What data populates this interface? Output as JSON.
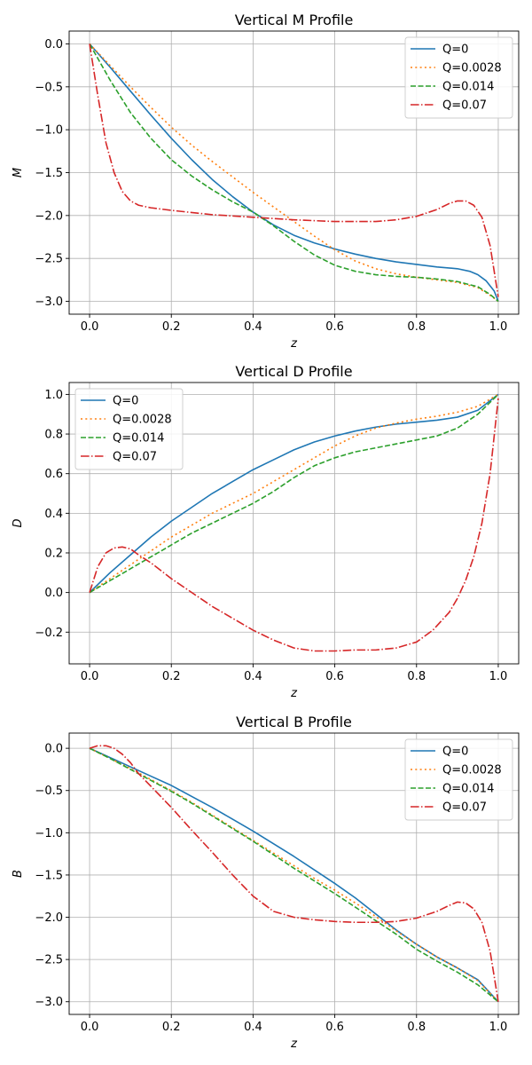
{
  "chart_data": [
    {
      "type": "line",
      "title": "Vertical M Profile",
      "xlabel": "z",
      "ylabel": "M",
      "xlim": [
        -0.05,
        1.05
      ],
      "ylim": [
        -3.15,
        0.15
      ],
      "xticks": [
        0.0,
        0.2,
        0.4,
        0.6,
        0.8,
        1.0
      ],
      "xtick_labels": [
        "0.0",
        "0.2",
        "0.4",
        "0.6",
        "0.8",
        "1.0"
      ],
      "yticks": [
        0.0,
        -0.5,
        -1.0,
        -1.5,
        -2.0,
        -2.5,
        -3.0
      ],
      "ytick_labels": [
        "0.0",
        "−0.5",
        "−1.0",
        "−1.5",
        "−2.0",
        "−2.5",
        "−3.0"
      ],
      "grid": true,
      "legend_position": "upper right",
      "series": [
        {
          "name": "Q=0",
          "color": "#1f77b4",
          "dash": "solid",
          "x": [
            0,
            0.05,
            0.1,
            0.15,
            0.2,
            0.25,
            0.3,
            0.35,
            0.4,
            0.45,
            0.5,
            0.55,
            0.6,
            0.65,
            0.7,
            0.75,
            0.8,
            0.85,
            0.9,
            0.93,
            0.95,
            0.97,
            0.99,
            1.0
          ],
          "y": [
            0,
            -0.27,
            -0.55,
            -0.83,
            -1.1,
            -1.35,
            -1.58,
            -1.78,
            -1.96,
            -2.11,
            -2.23,
            -2.32,
            -2.39,
            -2.45,
            -2.5,
            -2.54,
            -2.57,
            -2.6,
            -2.62,
            -2.65,
            -2.69,
            -2.76,
            -2.88,
            -3.0
          ]
        },
        {
          "name": "Q=0.0028",
          "color": "#ff7f0e",
          "dash": "dotted",
          "x": [
            0,
            0.05,
            0.1,
            0.15,
            0.2,
            0.25,
            0.3,
            0.35,
            0.4,
            0.45,
            0.5,
            0.55,
            0.6,
            0.65,
            0.7,
            0.75,
            0.8,
            0.85,
            0.9,
            0.95,
            0.98,
            1.0
          ],
          "y": [
            0,
            -0.25,
            -0.5,
            -0.74,
            -0.97,
            -1.18,
            -1.37,
            -1.55,
            -1.73,
            -1.9,
            -2.07,
            -2.24,
            -2.4,
            -2.53,
            -2.62,
            -2.68,
            -2.72,
            -2.75,
            -2.78,
            -2.84,
            -2.93,
            -3.0
          ]
        },
        {
          "name": "Q=0.014",
          "color": "#2ca02c",
          "dash": "dashed",
          "x": [
            0,
            0.05,
            0.1,
            0.15,
            0.2,
            0.25,
            0.3,
            0.35,
            0.4,
            0.45,
            0.5,
            0.55,
            0.6,
            0.65,
            0.7,
            0.75,
            0.8,
            0.85,
            0.9,
            0.95,
            0.98,
            1.0
          ],
          "y": [
            0,
            -0.42,
            -0.8,
            -1.1,
            -1.35,
            -1.54,
            -1.7,
            -1.84,
            -1.96,
            -2.12,
            -2.3,
            -2.46,
            -2.58,
            -2.65,
            -2.69,
            -2.71,
            -2.72,
            -2.74,
            -2.77,
            -2.83,
            -2.92,
            -3.0
          ]
        },
        {
          "name": "Q=0.07",
          "color": "#d62728",
          "dash": "dashdot",
          "x": [
            0,
            0.02,
            0.04,
            0.06,
            0.08,
            0.1,
            0.12,
            0.15,
            0.2,
            0.3,
            0.4,
            0.5,
            0.6,
            0.7,
            0.75,
            0.8,
            0.85,
            0.88,
            0.9,
            0.92,
            0.94,
            0.96,
            0.98,
            1.0
          ],
          "y": [
            0,
            -0.6,
            -1.15,
            -1.5,
            -1.72,
            -1.83,
            -1.88,
            -1.91,
            -1.94,
            -1.99,
            -2.02,
            -2.05,
            -2.07,
            -2.07,
            -2.05,
            -2.01,
            -1.93,
            -1.86,
            -1.83,
            -1.83,
            -1.88,
            -2.02,
            -2.35,
            -2.95
          ]
        }
      ]
    },
    {
      "type": "line",
      "title": "Vertical D Profile",
      "xlabel": "z",
      "ylabel": "D",
      "xlim": [
        -0.05,
        1.05
      ],
      "ylim": [
        -0.36,
        1.06
      ],
      "xticks": [
        0.0,
        0.2,
        0.4,
        0.6,
        0.8,
        1.0
      ],
      "xtick_labels": [
        "0.0",
        "0.2",
        "0.4",
        "0.6",
        "0.8",
        "1.0"
      ],
      "yticks": [
        -0.2,
        0.0,
        0.2,
        0.4,
        0.6,
        0.8,
        1.0
      ],
      "ytick_labels": [
        "−0.2",
        "0.0",
        "0.2",
        "0.4",
        "0.6",
        "0.8",
        "1.0"
      ],
      "grid": true,
      "legend_position": "upper left",
      "series": [
        {
          "name": "Q=0",
          "color": "#1f77b4",
          "dash": "solid",
          "x": [
            0,
            0.05,
            0.1,
            0.15,
            0.2,
            0.25,
            0.3,
            0.35,
            0.4,
            0.45,
            0.5,
            0.55,
            0.6,
            0.65,
            0.7,
            0.75,
            0.8,
            0.85,
            0.9,
            0.95,
            1.0
          ],
          "y": [
            0,
            0.1,
            0.19,
            0.28,
            0.36,
            0.43,
            0.5,
            0.56,
            0.62,
            0.67,
            0.72,
            0.76,
            0.79,
            0.815,
            0.835,
            0.85,
            0.86,
            0.87,
            0.885,
            0.92,
            1.0
          ]
        },
        {
          "name": "Q=0.0028",
          "color": "#ff7f0e",
          "dash": "dotted",
          "x": [
            0,
            0.05,
            0.1,
            0.15,
            0.2,
            0.25,
            0.3,
            0.35,
            0.4,
            0.45,
            0.5,
            0.55,
            0.6,
            0.65,
            0.7,
            0.75,
            0.8,
            0.85,
            0.9,
            0.95,
            1.0
          ],
          "y": [
            0,
            0.07,
            0.14,
            0.21,
            0.28,
            0.34,
            0.4,
            0.45,
            0.5,
            0.56,
            0.62,
            0.68,
            0.74,
            0.79,
            0.83,
            0.855,
            0.875,
            0.89,
            0.91,
            0.94,
            1.0
          ]
        },
        {
          "name": "Q=0.014",
          "color": "#2ca02c",
          "dash": "dashed",
          "x": [
            0,
            0.05,
            0.1,
            0.15,
            0.2,
            0.25,
            0.3,
            0.35,
            0.4,
            0.45,
            0.5,
            0.55,
            0.6,
            0.65,
            0.7,
            0.75,
            0.8,
            0.85,
            0.9,
            0.95,
            0.98,
            1.0
          ],
          "y": [
            0,
            0.06,
            0.12,
            0.18,
            0.24,
            0.3,
            0.35,
            0.4,
            0.45,
            0.51,
            0.58,
            0.64,
            0.68,
            0.71,
            0.73,
            0.75,
            0.77,
            0.79,
            0.83,
            0.9,
            0.96,
            1.0
          ]
        },
        {
          "name": "Q=0.07",
          "color": "#d62728",
          "dash": "dashdot",
          "x": [
            0,
            0.02,
            0.04,
            0.06,
            0.08,
            0.1,
            0.12,
            0.15,
            0.2,
            0.25,
            0.3,
            0.35,
            0.4,
            0.45,
            0.5,
            0.55,
            0.6,
            0.65,
            0.7,
            0.75,
            0.8,
            0.84,
            0.88,
            0.9,
            0.92,
            0.94,
            0.96,
            0.98,
            1.0
          ],
          "y": [
            0,
            0.13,
            0.2,
            0.225,
            0.23,
            0.22,
            0.19,
            0.15,
            0.07,
            0.0,
            -0.07,
            -0.13,
            -0.19,
            -0.24,
            -0.28,
            -0.295,
            -0.295,
            -0.29,
            -0.29,
            -0.28,
            -0.25,
            -0.19,
            -0.1,
            -0.03,
            0.06,
            0.18,
            0.35,
            0.6,
            0.98
          ]
        }
      ]
    },
    {
      "type": "line",
      "title": "Vertical B Profile",
      "xlabel": "z",
      "ylabel": "B",
      "xlim": [
        -0.05,
        1.05
      ],
      "ylim": [
        -3.15,
        0.18
      ],
      "xticks": [
        0.0,
        0.2,
        0.4,
        0.6,
        0.8,
        1.0
      ],
      "xtick_labels": [
        "0.0",
        "0.2",
        "0.4",
        "0.6",
        "0.8",
        "1.0"
      ],
      "yticks": [
        0.0,
        -0.5,
        -1.0,
        -1.5,
        -2.0,
        -2.5,
        -3.0
      ],
      "ytick_labels": [
        "0.0",
        "−0.5",
        "−1.0",
        "−1.5",
        "−2.0",
        "−2.5",
        "−3.0"
      ],
      "grid": true,
      "legend_position": "upper right",
      "series": [
        {
          "name": "Q=0",
          "color": "#1f77b4",
          "dash": "solid",
          "x": [
            0,
            0.05,
            0.1,
            0.15,
            0.2,
            0.25,
            0.3,
            0.35,
            0.4,
            0.45,
            0.5,
            0.55,
            0.6,
            0.65,
            0.7,
            0.75,
            0.8,
            0.85,
            0.9,
            0.95,
            1.0
          ],
          "y": [
            0,
            -0.11,
            -0.22,
            -0.33,
            -0.44,
            -0.57,
            -0.7,
            -0.84,
            -0.98,
            -1.13,
            -1.28,
            -1.44,
            -1.6,
            -1.77,
            -1.96,
            -2.15,
            -2.32,
            -2.47,
            -2.6,
            -2.74,
            -3.0
          ]
        },
        {
          "name": "Q=0.0028",
          "color": "#ff7f0e",
          "dash": "dotted",
          "x": [
            0,
            0.05,
            0.1,
            0.15,
            0.2,
            0.25,
            0.3,
            0.35,
            0.4,
            0.45,
            0.5,
            0.55,
            0.6,
            0.65,
            0.7,
            0.75,
            0.8,
            0.85,
            0.9,
            0.95,
            1.0
          ],
          "y": [
            0,
            -0.12,
            -0.24,
            -0.37,
            -0.5,
            -0.64,
            -0.79,
            -0.94,
            -1.09,
            -1.24,
            -1.39,
            -1.54,
            -1.68,
            -1.83,
            -1.99,
            -2.16,
            -2.32,
            -2.47,
            -2.6,
            -2.75,
            -3.0
          ]
        },
        {
          "name": "Q=0.014",
          "color": "#2ca02c",
          "dash": "dashed",
          "x": [
            0,
            0.05,
            0.1,
            0.15,
            0.2,
            0.25,
            0.3,
            0.35,
            0.4,
            0.45,
            0.5,
            0.55,
            0.6,
            0.65,
            0.7,
            0.75,
            0.8,
            0.85,
            0.9,
            0.95,
            1.0
          ],
          "y": [
            0,
            -0.12,
            -0.25,
            -0.38,
            -0.51,
            -0.65,
            -0.8,
            -0.95,
            -1.1,
            -1.26,
            -1.42,
            -1.57,
            -1.72,
            -1.88,
            -2.04,
            -2.2,
            -2.38,
            -2.52,
            -2.65,
            -2.8,
            -3.0
          ]
        },
        {
          "name": "Q=0.07",
          "color": "#d62728",
          "dash": "dashdot",
          "x": [
            0,
            0.02,
            0.04,
            0.06,
            0.08,
            0.1,
            0.12,
            0.15,
            0.2,
            0.25,
            0.3,
            0.35,
            0.4,
            0.45,
            0.5,
            0.55,
            0.6,
            0.65,
            0.7,
            0.75,
            0.8,
            0.85,
            0.88,
            0.9,
            0.92,
            0.94,
            0.96,
            0.98,
            1.0
          ],
          "y": [
            0,
            0.03,
            0.03,
            0.0,
            -0.07,
            -0.17,
            -0.3,
            -0.45,
            -0.7,
            -0.97,
            -1.23,
            -1.5,
            -1.75,
            -1.93,
            -2.0,
            -2.03,
            -2.05,
            -2.06,
            -2.06,
            -2.05,
            -2.01,
            -1.93,
            -1.86,
            -1.82,
            -1.83,
            -1.9,
            -2.06,
            -2.4,
            -3.0
          ]
        }
      ]
    }
  ]
}
